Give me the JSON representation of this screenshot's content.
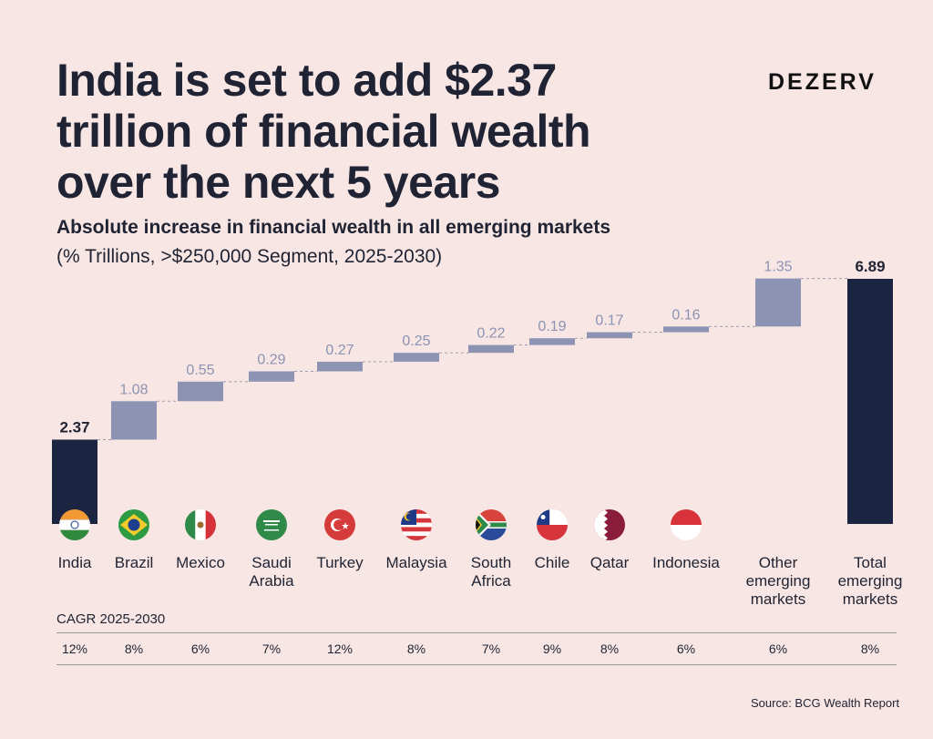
{
  "header": {
    "title_lines": [
      "India is set to add $2.37",
      "trillion of financial wealth",
      "over the next 5 years"
    ],
    "brand": "DEZERV"
  },
  "subtitle": {
    "main": "Absolute increase in financial wealth in all emerging markets",
    "units": "(% Trillions, >$250,000 Segment, 2025-2030)"
  },
  "cagr_title": "CAGR 2025-2030",
  "source": "Source: BCG Wealth Report",
  "colors": {
    "total_bar": "#1b2440",
    "increment_bar": "#8d93b3",
    "increment_label": "#8d93b3",
    "total_label": "#1f2333",
    "connector": "#9a9db0"
  },
  "chart_data": {
    "type": "waterfall",
    "title": "Absolute increase in financial wealth in all emerging markets",
    "subtitle": "(% Trillions, >$250,000 Segment, 2025-2030)",
    "categories": [
      "India",
      "Brazil",
      "Mexico",
      "Saudi Arabia",
      "Turkey",
      "Malaysia",
      "South Africa",
      "Chile",
      "Qatar",
      "Indonesia",
      "Other emerging markets",
      "Total emerging markets"
    ],
    "category_label_lines": [
      [
        "India"
      ],
      [
        "Brazil"
      ],
      [
        "Mexico"
      ],
      [
        "Saudi",
        "Arabia"
      ],
      [
        "Turkey"
      ],
      [
        "Malaysia"
      ],
      [
        "South",
        "Africa"
      ],
      [
        "Chile"
      ],
      [
        "Qatar"
      ],
      [
        "Indonesia"
      ],
      [
        "Other",
        "emerging",
        "markets"
      ],
      [
        "Total",
        "emerging",
        "markets"
      ]
    ],
    "values": [
      2.37,
      1.08,
      0.55,
      0.29,
      0.27,
      0.25,
      0.22,
      0.19,
      0.17,
      0.16,
      1.35,
      6.89
    ],
    "labels": [
      "2.37",
      "1.08",
      "0.55",
      "0.29",
      "0.27",
      "0.25",
      "0.22",
      "0.19",
      "0.17",
      "0.16",
      "1.35",
      "6.89"
    ],
    "bar_kinds": [
      "total",
      "increment",
      "increment",
      "increment",
      "increment",
      "increment",
      "increment",
      "increment",
      "increment",
      "increment",
      "increment",
      "total"
    ],
    "flags": [
      "india-flag",
      "brazil-flag",
      "mexico-flag",
      "saudi-arabia-flag",
      "turkey-flag",
      "malaysia-flag",
      "south-africa-flag",
      "chile-flag",
      "qatar-flag",
      "indonesia-flag",
      "",
      ""
    ],
    "cagr": [
      "12%",
      "8%",
      "6%",
      "7%",
      "12%",
      "8%",
      "7%",
      "9%",
      "8%",
      "6%",
      "6%",
      "8%"
    ],
    "ylim": [
      0,
      6.89
    ],
    "grid": false,
    "legend": "none"
  }
}
